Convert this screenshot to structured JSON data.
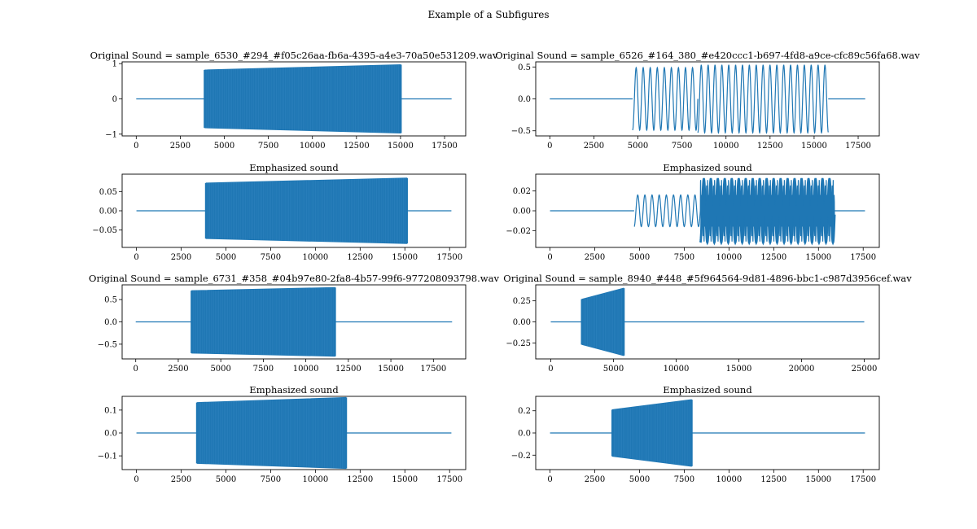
{
  "figure_title": "Example of a Subfigures",
  "colors": {
    "line": "#1f77b4",
    "axes": "#000000",
    "background": "#ffffff"
  },
  "chart_data": [
    {
      "type": "line",
      "title": "Original Sound = sample_6530_#294_#f05c26aa-fb6a-4395-a4e3-70a50e531209.wav",
      "series": [
        {
          "name": "waveform",
          "kind": "dense",
          "segments": [
            {
              "x0": 0,
              "x1": 3900,
              "a0": 0,
              "a1": 0
            },
            {
              "x0": 3900,
              "x1": 15000,
              "a0": 0.82,
              "a1": 0.97
            },
            {
              "x0": 15000,
              "x1": 17900,
              "a0": 0,
              "a1": 0
            }
          ]
        }
      ],
      "xlim": [
        -800,
        18700
      ],
      "ylim": [
        -1.05,
        1.05
      ],
      "xticks": [
        0,
        2500,
        5000,
        7500,
        10000,
        12500,
        15000,
        17500
      ],
      "xtick_labels": [
        "0",
        "2500",
        "5000",
        "7500",
        "10000",
        "12500",
        "15000",
        "17500"
      ],
      "yticks": [
        1,
        0,
        -1
      ],
      "ytick_labels": [
        "1",
        "0",
        "−1"
      ],
      "grid": false
    },
    {
      "type": "line",
      "title": "Original Sound = sample_6526_#164_380_#e420ccc1-b697-4fd8-a9ce-cfc89c56fa68.wav",
      "series": [
        {
          "name": "waveform",
          "kind": "sine",
          "segments": [
            {
              "x0": 0,
              "x1": 4700,
              "amp": 0,
              "period": 1
            },
            {
              "x0": 4700,
              "x1": 8400,
              "amp": 0.49,
              "period": 400
            },
            {
              "x0": 8400,
              "x1": 15800,
              "amp": 0.53,
              "period": 390
            },
            {
              "x0": 15800,
              "x1": 17900,
              "amp": 0,
              "period": 1
            }
          ]
        }
      ],
      "xlim": [
        -800,
        18700
      ],
      "ylim": [
        -0.58,
        0.58
      ],
      "xticks": [
        0,
        2500,
        5000,
        7500,
        10000,
        12500,
        15000,
        17500
      ],
      "xtick_labels": [
        "0",
        "2500",
        "5000",
        "7500",
        "10000",
        "12500",
        "15000",
        "17500"
      ],
      "yticks": [
        0.5,
        0,
        -0.5
      ],
      "ytick_labels": [
        "0.5",
        "0.0",
        "−0.5"
      ],
      "grid": false
    },
    {
      "type": "line",
      "title": "Emphasized sound",
      "series": [
        {
          "name": "waveform",
          "kind": "dense",
          "segments": [
            {
              "x0": 0,
              "x1": 3900,
              "a0": 0,
              "a1": 0
            },
            {
              "x0": 3900,
              "x1": 15100,
              "a0": 0.072,
              "a1": 0.085
            },
            {
              "x0": 15100,
              "x1": 17600,
              "a0": 0,
              "a1": 0
            }
          ]
        }
      ],
      "xlim": [
        -800,
        18400
      ],
      "ylim": [
        -0.095,
        0.095
      ],
      "xticks": [
        0,
        2500,
        5000,
        7500,
        10000,
        12500,
        15000,
        17500
      ],
      "xtick_labels": [
        "0",
        "2500",
        "5000",
        "7500",
        "10000",
        "12500",
        "15000",
        "17500"
      ],
      "yticks": [
        0.05,
        0,
        -0.05
      ],
      "ytick_labels": [
        "0.05",
        "0.00",
        "−0.05"
      ],
      "grid": false
    },
    {
      "type": "line",
      "title": "Emphasized sound",
      "series": [
        {
          "name": "waveform",
          "kind": "sine",
          "segments": [
            {
              "x0": 0,
              "x1": 4700,
              "amp": 0,
              "period": 1
            },
            {
              "x0": 4700,
              "x1": 8400,
              "amp": 0.016,
              "period": 400
            },
            {
              "x0": 8400,
              "x1": 15900,
              "amp": 0.032,
              "period": 390,
              "dense": true
            },
            {
              "x0": 15900,
              "x1": 17600,
              "amp": 0,
              "period": 1
            }
          ]
        }
      ],
      "xlim": [
        -800,
        18400
      ],
      "ylim": [
        -0.037,
        0.037
      ],
      "xticks": [
        0,
        2500,
        5000,
        7500,
        10000,
        12500,
        15000,
        17500
      ],
      "xtick_labels": [
        "0",
        "2500",
        "5000",
        "7500",
        "10000",
        "12500",
        "15000",
        "17500"
      ],
      "yticks": [
        0.02,
        0,
        -0.02
      ],
      "ytick_labels": [
        "0.02",
        "0.00",
        "−0.02"
      ],
      "grid": false
    },
    {
      "type": "line",
      "title": "Original Sound = sample_6731_#358_#04b97e80-2fa8-4b57-99f6-977208093798.wav",
      "series": [
        {
          "name": "waveform",
          "kind": "dense",
          "segments": [
            {
              "x0": 0,
              "x1": 3300,
              "a0": 0,
              "a1": 0
            },
            {
              "x0": 3300,
              "x1": 11700,
              "a0": 0.7,
              "a1": 0.77
            },
            {
              "x0": 11700,
              "x1": 18600,
              "a0": 0,
              "a1": 0
            }
          ]
        }
      ],
      "xlim": [
        -800,
        19400
      ],
      "ylim": [
        -0.83,
        0.83
      ],
      "xticks": [
        0,
        2500,
        5000,
        7500,
        10000,
        12500,
        15000,
        17500
      ],
      "xtick_labels": [
        "0",
        "2500",
        "5000",
        "7500",
        "10000",
        "12500",
        "15000",
        "17500"
      ],
      "yticks": [
        0.5,
        0,
        -0.5
      ],
      "ytick_labels": [
        "0.5",
        "0.0",
        "−0.5"
      ],
      "grid": false
    },
    {
      "type": "line",
      "title": "Original Sound = sample_8940_#448_#5f964564-9d81-4896-bbc1-c987d3956cef.wav",
      "series": [
        {
          "name": "waveform",
          "kind": "dense",
          "segments": [
            {
              "x0": 0,
              "x1": 2500,
              "a0": 0,
              "a1": 0
            },
            {
              "x0": 2500,
              "x1": 5800,
              "a0": 0.27,
              "a1": 0.4
            },
            {
              "x0": 5800,
              "x1": 25000,
              "a0": 0,
              "a1": 0
            }
          ]
        }
      ],
      "xlim": [
        -1200,
        26200
      ],
      "ylim": [
        -0.44,
        0.44
      ],
      "xticks": [
        0,
        5000,
        10000,
        15000,
        20000,
        25000
      ],
      "xtick_labels": [
        "0",
        "5000",
        "10000",
        "15000",
        "20000",
        "25000"
      ],
      "yticks": [
        0.25,
        0,
        -0.25
      ],
      "ytick_labels": [
        "0.25",
        "0.00",
        "−0.25"
      ],
      "grid": false
    },
    {
      "type": "line",
      "title": "Emphasized sound",
      "series": [
        {
          "name": "waveform",
          "kind": "dense",
          "segments": [
            {
              "x0": 0,
              "x1": 3400,
              "a0": 0,
              "a1": 0
            },
            {
              "x0": 3400,
              "x1": 11700,
              "a0": 0.133,
              "a1": 0.155
            },
            {
              "x0": 11700,
              "x1": 17600,
              "a0": 0,
              "a1": 0
            }
          ]
        }
      ],
      "xlim": [
        -800,
        18400
      ],
      "ylim": [
        -0.16,
        0.16
      ],
      "xticks": [
        0,
        2500,
        5000,
        7500,
        10000,
        12500,
        15000,
        17500
      ],
      "xtick_labels": [
        "0",
        "2500",
        "5000",
        "7500",
        "10000",
        "12500",
        "15000",
        "17500"
      ],
      "yticks": [
        0.1,
        0,
        -0.1
      ],
      "ytick_labels": [
        "0.1",
        "0.0",
        "−0.1"
      ],
      "grid": false
    },
    {
      "type": "line",
      "title": "Emphasized sound",
      "series": [
        {
          "name": "waveform",
          "kind": "dense",
          "segments": [
            {
              "x0": 0,
              "x1": 3500,
              "a0": 0,
              "a1": 0
            },
            {
              "x0": 3500,
              "x1": 7900,
              "a0": 0.21,
              "a1": 0.3
            },
            {
              "x0": 7900,
              "x1": 17600,
              "a0": 0,
              "a1": 0
            }
          ]
        }
      ],
      "xlim": [
        -800,
        18400
      ],
      "ylim": [
        -0.33,
        0.33
      ],
      "xticks": [
        0,
        2500,
        5000,
        7500,
        10000,
        12500,
        15000,
        17500
      ],
      "xtick_labels": [
        "0",
        "2500",
        "5000",
        "7500",
        "10000",
        "12500",
        "15000",
        "17500"
      ],
      "yticks": [
        0.2,
        0,
        -0.2
      ],
      "ytick_labels": [
        "0.2",
        "0.0",
        "−0.2"
      ],
      "grid": false
    }
  ]
}
